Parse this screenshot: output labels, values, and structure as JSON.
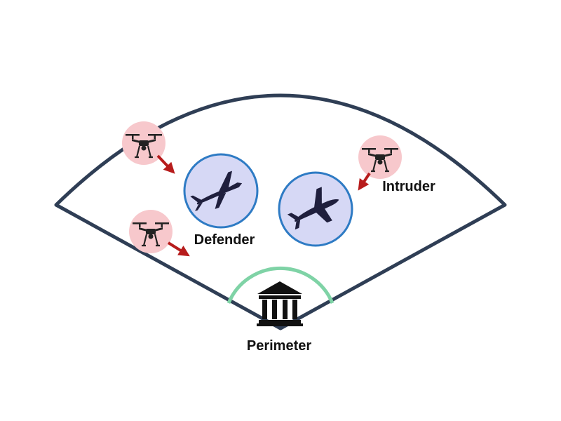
{
  "labels": {
    "defender": "Defender",
    "intruder": "Intruder",
    "perimeter": "Perimeter"
  },
  "icons": {
    "intruder_drone": "quadcopter-drone-icon",
    "defender_uav": "fixed-wing-uav-icon",
    "protected_asset": "building-icon",
    "approach": "arrow-icon"
  },
  "colors": {
    "sector_outline": "#2f3e55",
    "perimeter_arc": "#7fd3a6",
    "defender_fill": "#d6d8f5",
    "defender_ring": "#2e7bc4",
    "intruder_halo": "#f7c8cc",
    "arrow": "#b71c1c",
    "silhouette": "#1f1f3d",
    "building": "#111111"
  }
}
